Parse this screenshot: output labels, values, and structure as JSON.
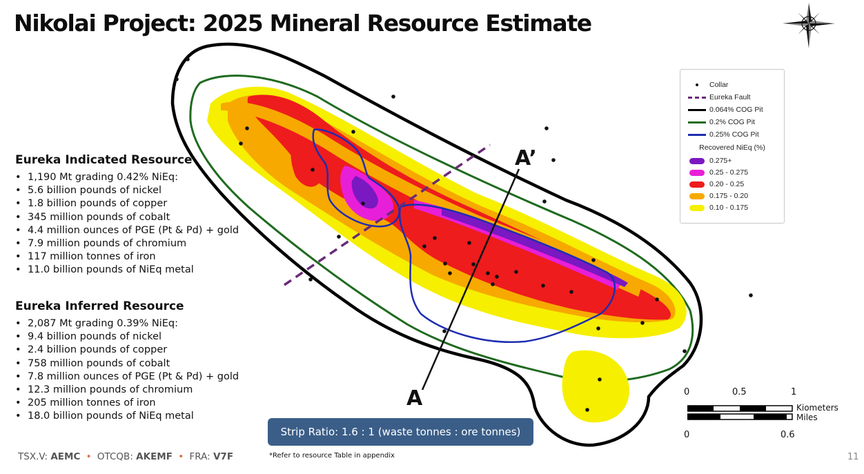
{
  "title": "Nikolai Project:  2025 Mineral Resource Estimate",
  "indicated": {
    "heading": "Eureka Indicated Resource",
    "items": [
      "1,190  Mt grading 0.42% NiEq:",
      "5.6  billion pounds of nickel",
      "1.8  billion pounds of copper",
      "345 million pounds of cobalt",
      "4.4  million ounces of PGE (Pt & Pd) + gold",
      "7.9 million pounds of chromium",
      "117 million tonnes of iron",
      "11.0  billion pounds of NiEq metal"
    ]
  },
  "inferred": {
    "heading": "Eureka Inferred Resource",
    "items": [
      "2,087 Mt grading 0.39% NiEq:",
      "9.4 billion pounds of nickel",
      "2.4 billion pounds of copper",
      "758 million pounds of cobalt",
      "7.8 million ounces of PGE (Pt & Pd) + gold",
      "12.3 million pounds of chromium",
      "205 million tonnes of iron",
      "18.0 billion pounds of NiEq metal"
    ]
  },
  "legend": {
    "collar": "Collar",
    "eureka_fault": "Eureka Fault",
    "pit_0064": "0.064% COG Pit",
    "pit_02": "0.2% COG Pit",
    "pit_025": "0.25% COG Pit",
    "grade_heading": "Recovered NiEq (%)",
    "grades": [
      {
        "label": "0.275+",
        "color": "#7a18c2"
      },
      {
        "label": "0.25 - 0.275",
        "color": "#e81fd8"
      },
      {
        "label": "0.20 - 0.25",
        "color": "#ee1c1c"
      },
      {
        "label": "0.175 - 0.20",
        "color": "#f7a900"
      },
      {
        "label": "0.10 - 0.175",
        "color": "#f6ef00"
      }
    ],
    "line_colors": {
      "fault": "#6a2a78",
      "pit_0064": "#000000",
      "pit_02": "#1f6b1f",
      "pit_025": "#1f2db0"
    }
  },
  "section": {
    "a": "A",
    "a_prime": "A’"
  },
  "scale": {
    "km_ticks": [
      "0",
      "0.5",
      "1"
    ],
    "mi_ticks": [
      "0",
      "0.6"
    ],
    "km_label": "Kiometers",
    "mi_label": "Miles"
  },
  "strip_ratio": "Strip Ratio: 1.6 : 1 (waste tonnes : ore tonnes)",
  "footer": {
    "tsx_label": "TSX.V:",
    "tsx_value": "AEMC",
    "otc_label": "OTCQB:",
    "otc_value": "AKEMF",
    "fra_label": "FRA:",
    "fra_value": "V7F",
    "separator": "•",
    "footnote": "*Refer to resource Table in appendix",
    "page": "11"
  }
}
